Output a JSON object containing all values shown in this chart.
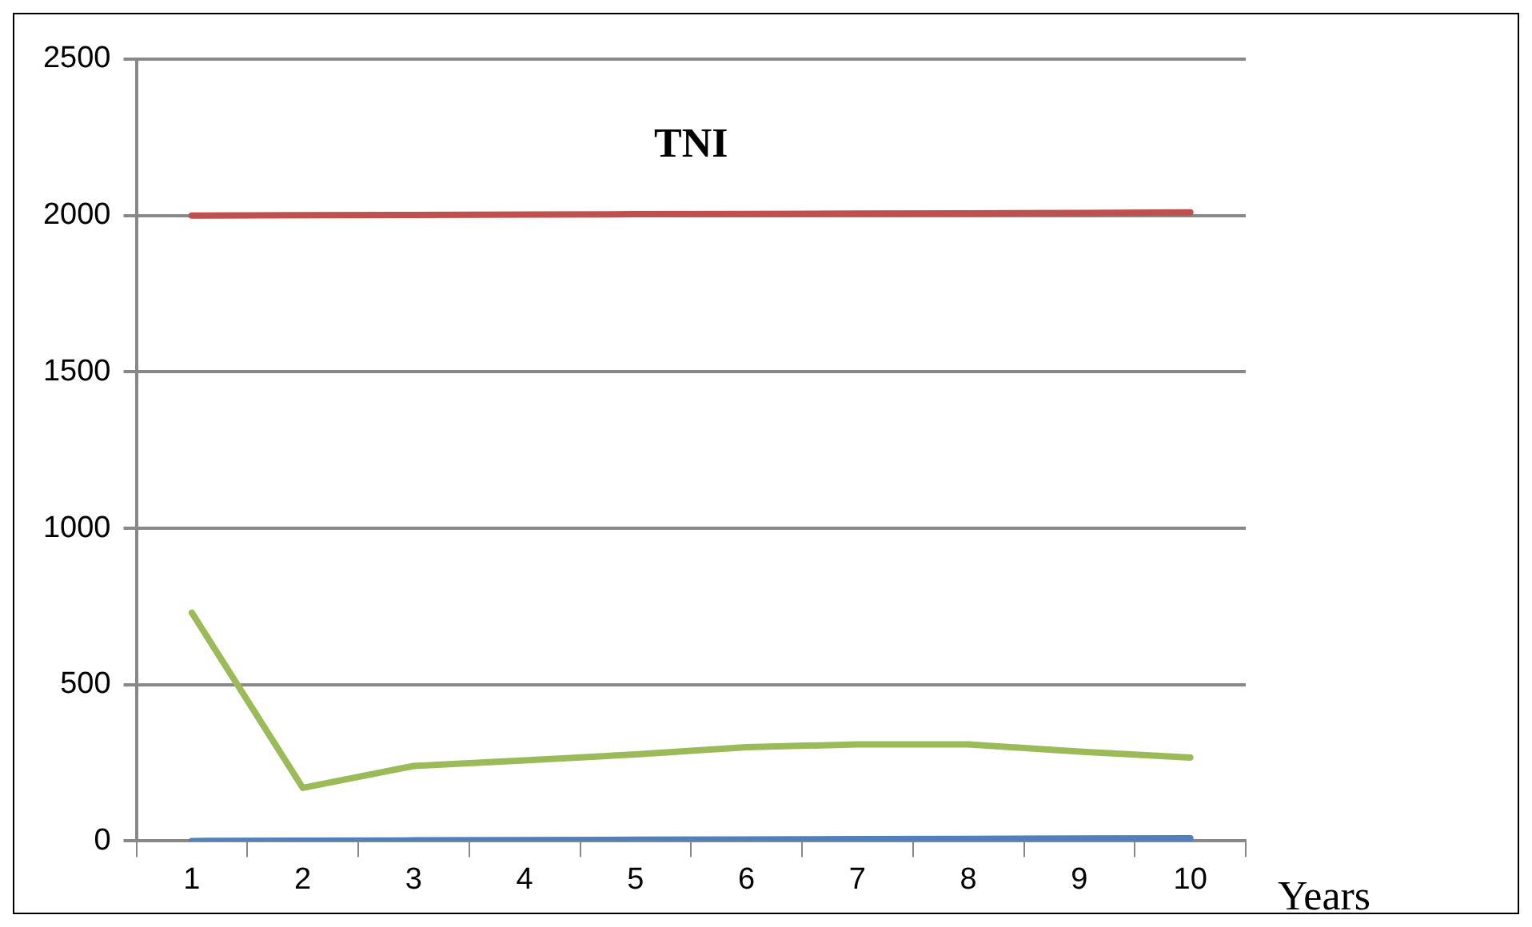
{
  "chart_data": {
    "type": "line",
    "xlabel": "Years",
    "categories": [
      "1",
      "2",
      "3",
      "4",
      "5",
      "6",
      "7",
      "8",
      "9",
      "10"
    ],
    "series": [
      {
        "name": "TNI",
        "color": "#c0504d",
        "values": [
          2000,
          2001,
          2002,
          2003,
          2004,
          2005,
          2006,
          2007,
          2008,
          2010
        ]
      },
      {
        "color": "#9bbb59",
        "values": [
          730,
          170,
          240,
          258,
          277,
          300,
          309,
          309,
          286,
          267
        ]
      },
      {
        "color": "#4f81bd",
        "values": [
          0,
          1,
          2,
          3,
          4,
          5,
          6,
          7,
          8,
          9
        ]
      }
    ],
    "ylim": [
      0,
      2500
    ],
    "yticks": [
      0,
      500,
      1000,
      1500,
      2000,
      2500
    ],
    "grid": "y",
    "legend": false,
    "marker": "none",
    "line_style": "solid"
  }
}
